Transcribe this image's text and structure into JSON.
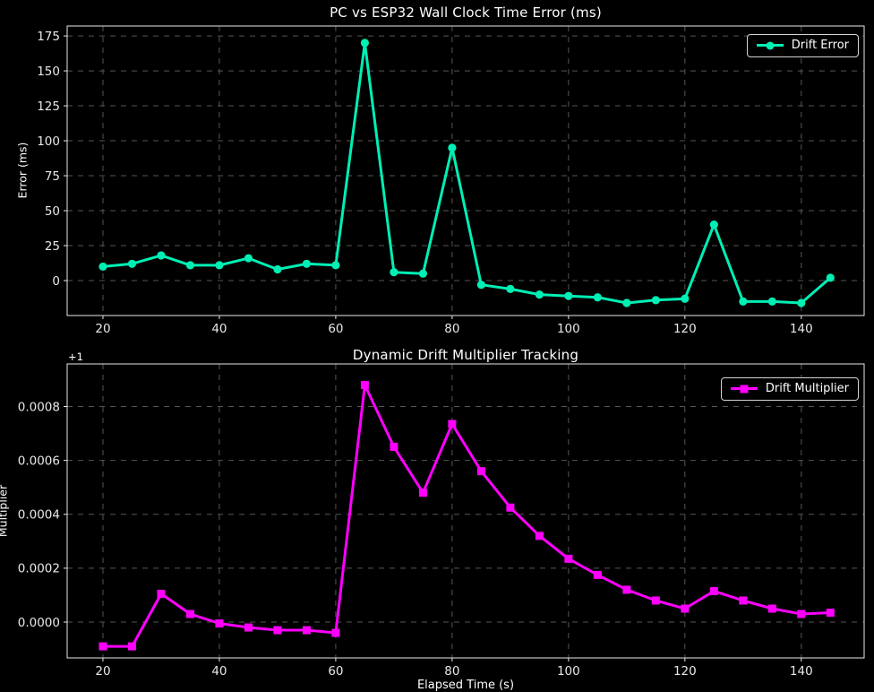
{
  "figure": {
    "background": "#000000",
    "text_color": "#ffffff",
    "tick_label_color": "#e8e8e8",
    "grid_color": "#565656",
    "spine_color": "#e8e8e8",
    "legend_border_color": "#d4d4d4",
    "legend_background": "#000000"
  },
  "chart_data": [
    {
      "type": "line",
      "title": "PC vs ESP32 Wall Clock Time Error (ms)",
      "ylabel": "Error (ms)",
      "legend_label": "Drift Error",
      "legend_position": "upper right",
      "line_color": "#00efb5",
      "marker": "circle",
      "grid": "dashed",
      "x": [
        20,
        25,
        30,
        35,
        40,
        45,
        50,
        55,
        60,
        65,
        70,
        75,
        80,
        85,
        90,
        95,
        100,
        105,
        110,
        115,
        120,
        125,
        130,
        135,
        140,
        145
      ],
      "y": [
        10,
        12,
        18,
        11,
        11,
        16,
        8,
        12,
        11,
        170,
        6,
        5,
        95,
        -3,
        -6,
        -10,
        -11,
        -12,
        -16,
        -14,
        -13,
        40,
        -15,
        -15,
        -16,
        2
      ],
      "xticks": [
        20,
        40,
        60,
        80,
        100,
        120,
        140
      ],
      "yticks": [
        0,
        25,
        50,
        75,
        100,
        125,
        150,
        175
      ],
      "xlim": [
        13.85,
        150.8
      ],
      "ylim": [
        -25.0,
        182.1
      ]
    },
    {
      "type": "line",
      "title": "Dynamic Drift Multiplier Tracking",
      "xlabel": "Elapsed Time (s)",
      "ylabel": "Multiplier",
      "offset_text": "+1",
      "legend_label": "Drift Multiplier",
      "legend_position": "upper right",
      "line_color": "#ff00ff",
      "marker": "square",
      "grid": "dashed",
      "x": [
        20,
        25,
        30,
        35,
        40,
        45,
        50,
        55,
        60,
        65,
        70,
        75,
        80,
        85,
        90,
        95,
        100,
        105,
        110,
        115,
        120,
        125,
        130,
        135,
        140,
        145
      ],
      "y": [
        -9e-05,
        -9e-05,
        0.000105,
        3e-05,
        -5e-06,
        -2e-05,
        -3e-05,
        -3e-05,
        -4e-05,
        0.00088,
        0.00065,
        0.00048,
        0.000735,
        0.00056,
        0.000425,
        0.00032,
        0.000235,
        0.000175,
        0.00012,
        8e-05,
        5e-05,
        0.000115,
        8e-05,
        5e-05,
        3e-05,
        3.5e-05
      ],
      "xticks": [
        20,
        40,
        60,
        80,
        100,
        120,
        140
      ],
      "yticks": [
        0,
        0.0002,
        0.0004,
        0.0006,
        0.0008
      ],
      "ytick_decimals": 4,
      "xlim": [
        13.85,
        150.8
      ],
      "ylim": [
        -0.000133,
        0.000958
      ]
    }
  ]
}
